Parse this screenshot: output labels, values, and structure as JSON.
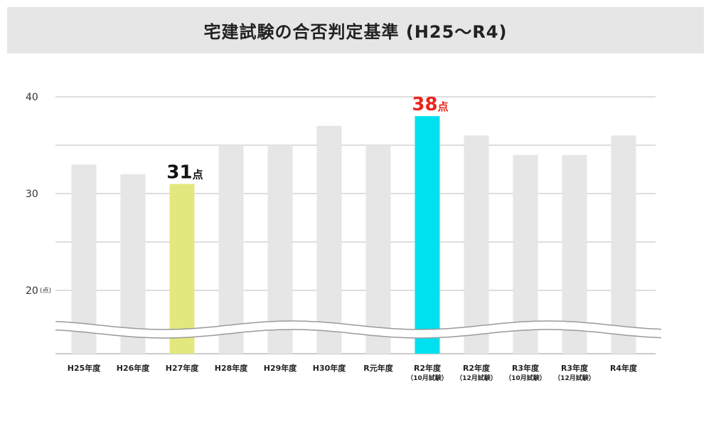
{
  "title": "宅建試験の合否判定基準 (H25〜R4)",
  "chart_data": {
    "type": "bar",
    "title": "宅建試験の合否判定基準 (H25〜R4)",
    "y_unit": "(点)",
    "ylim": [
      20,
      40
    ],
    "yticks": [
      "40",
      "30",
      "20"
    ],
    "axis_break": true,
    "grid": true,
    "categories": [
      {
        "label": "H25年度",
        "sub": ""
      },
      {
        "label": "H26年度",
        "sub": ""
      },
      {
        "label": "H27年度",
        "sub": ""
      },
      {
        "label": "H28年度",
        "sub": ""
      },
      {
        "label": "H29年度",
        "sub": ""
      },
      {
        "label": "H30年度",
        "sub": ""
      },
      {
        "label": "R元年度",
        "sub": ""
      },
      {
        "label": "R2年度",
        "sub": "（10月試験）"
      },
      {
        "label": "R2年度",
        "sub": "（12月試験）"
      },
      {
        "label": "R3年度",
        "sub": "（10月試験）"
      },
      {
        "label": "R3年度",
        "sub": "（12月試験）"
      },
      {
        "label": "R4年度",
        "sub": ""
      }
    ],
    "values": [
      33,
      32,
      31,
      35,
      35,
      37,
      35,
      38,
      36,
      34,
      34,
      36
    ],
    "colors": {
      "default": "#e6e6e6",
      "highlight_low": "#e3e87e",
      "highlight_high": "#00e1f0",
      "annotation_low": "#111111",
      "annotation_high": "#e8261c"
    },
    "highlights": [
      {
        "index": 2,
        "style": "highlight_low",
        "num": "31",
        "unit": "点"
      },
      {
        "index": 7,
        "style": "highlight_high",
        "num": "38",
        "unit": "点"
      }
    ]
  }
}
